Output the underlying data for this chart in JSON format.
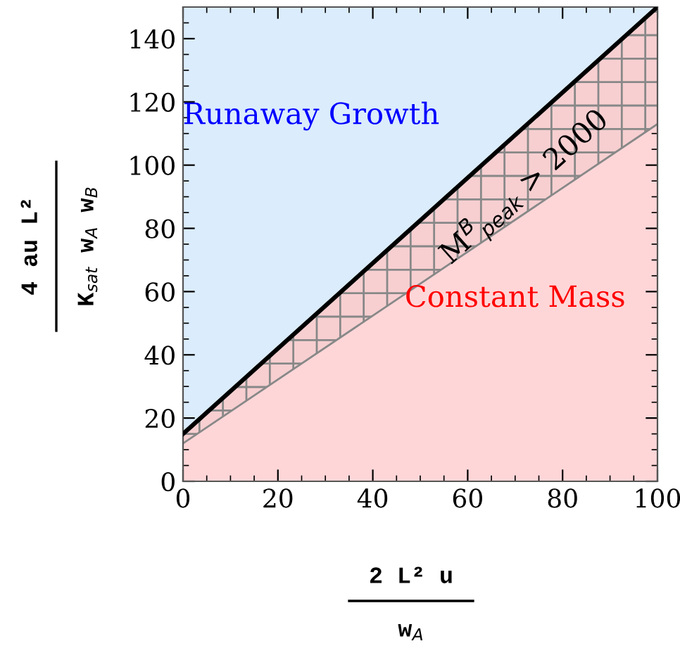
{
  "chart_data": {
    "type": "area",
    "xlabel": "2 L² u\nw$_{A}$",
    "ylabel": "4 au L²\nK$_{sat}$ w$_{A}$ w$_{B}$",
    "xlim": [
      0,
      100
    ],
    "ylim": [
      0,
      150
    ],
    "xticks": [
      0,
      20,
      40,
      60,
      80,
      100
    ],
    "yticks": [
      0,
      20,
      40,
      60,
      80,
      100,
      120,
      140
    ],
    "grid": false,
    "legend": false,
    "x": [
      0,
      100
    ],
    "series": [
      {
        "color": "#ffd6d8",
        "values": [
          15,
          150
        ]
      },
      {
        "type": "line",
        "color": "#888888",
        "values": [
          12,
          113
        ]
      }
    ],
    "bands": [
      {
        "axis": "x",
        "from": 0,
        "to": 100,
        "color": "#dbecfc"
      }
    ],
    "annotations": [
      "Runaway Growth",
      "Constant Mass",
      "M$^{B}$$_{peak}$ > 2000"
    ]
  }
}
